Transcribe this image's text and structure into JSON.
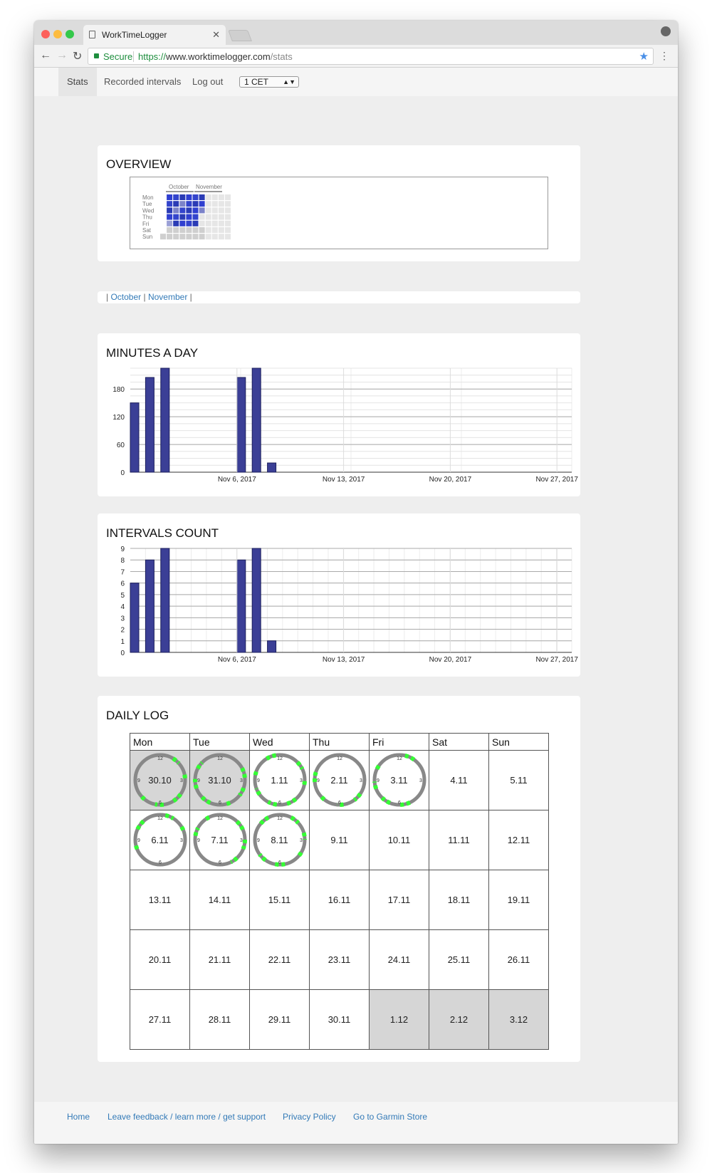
{
  "browser": {
    "tab_title": "WorkTimeLogger",
    "secure_label": "Secure",
    "url_scheme": "https://",
    "url_host": "www.worktimelogger.com",
    "url_path": "/stats"
  },
  "nav": {
    "items": [
      "Stats",
      "Recorded intervals",
      "Log out"
    ],
    "timezone": "1 CET"
  },
  "overview": {
    "title": "OVERVIEW",
    "months": [
      "October",
      "November"
    ],
    "days": [
      "Mon",
      "Tue",
      "Wed",
      "Thu",
      "Fri",
      "Sat",
      "Sun"
    ]
  },
  "month_links": {
    "sep": "|",
    "items": [
      "October",
      "November"
    ]
  },
  "minutes_chart": {
    "title": "MINUTES A DAY",
    "chart_data": {
      "type": "bar",
      "x": [
        "2017-10-30",
        "2017-10-31",
        "2017-11-01",
        "2017-11-02",
        "2017-11-03",
        "2017-11-06",
        "2017-11-07",
        "2017-11-08"
      ],
      "values": [
        150,
        205,
        225,
        0,
        0,
        205,
        225,
        20
      ],
      "ylim": [
        0,
        225
      ],
      "yticks": [
        "180",
        "120",
        "60",
        "0"
      ],
      "xticks": [
        "Nov 6, 2017",
        "Nov 13, 2017",
        "Nov 20, 2017",
        "Nov 27, 2017"
      ],
      "bar_color": "#3b3f96"
    }
  },
  "intervals_chart": {
    "title": "INTERVALS COUNT",
    "chart_data": {
      "type": "bar",
      "x": [
        "2017-10-30",
        "2017-10-31",
        "2017-11-01",
        "2017-11-02",
        "2017-11-03",
        "2017-11-06",
        "2017-11-07",
        "2017-11-08"
      ],
      "values": [
        6,
        8,
        9,
        0,
        0,
        8,
        9,
        1
      ],
      "ylim": [
        0,
        9
      ],
      "yticks": [
        "9",
        "8",
        "7",
        "6",
        "5",
        "4",
        "3",
        "2",
        "1",
        "0"
      ],
      "xticks": [
        "Nov 6, 2017",
        "Nov 13, 2017",
        "Nov 20, 2017",
        "Nov 27, 2017"
      ],
      "bar_color": "#3b3f96"
    }
  },
  "daily_log": {
    "title": "DAILY LOG",
    "weekdays": [
      "Mon",
      "Tue",
      "Wed",
      "Thu",
      "Fri",
      "Sat",
      "Sun"
    ],
    "clock_labels": [
      "12",
      "3",
      "6",
      "9"
    ],
    "weeks": [
      [
        {
          "d": "30.10",
          "c": true,
          "g": true
        },
        {
          "d": "31.10",
          "c": true,
          "g": true
        },
        {
          "d": "1.11",
          "c": true
        },
        {
          "d": "2.11",
          "c": true
        },
        {
          "d": "3.11",
          "c": true
        },
        {
          "d": "4.11"
        },
        {
          "d": "5.11"
        }
      ],
      [
        {
          "d": "6.11",
          "c": true
        },
        {
          "d": "7.11",
          "c": true
        },
        {
          "d": "8.11",
          "c": true
        },
        {
          "d": "9.11"
        },
        {
          "d": "10.11"
        },
        {
          "d": "11.11"
        },
        {
          "d": "12.11"
        }
      ],
      [
        {
          "d": "13.11"
        },
        {
          "d": "14.11"
        },
        {
          "d": "15.11"
        },
        {
          "d": "16.11"
        },
        {
          "d": "17.11"
        },
        {
          "d": "18.11"
        },
        {
          "d": "19.11"
        }
      ],
      [
        {
          "d": "20.11"
        },
        {
          "d": "21.11"
        },
        {
          "d": "22.11"
        },
        {
          "d": "23.11"
        },
        {
          "d": "24.11"
        },
        {
          "d": "25.11"
        },
        {
          "d": "26.11"
        }
      ],
      [
        {
          "d": "27.11"
        },
        {
          "d": "28.11"
        },
        {
          "d": "29.11"
        },
        {
          "d": "30.11"
        },
        {
          "d": "1.12",
          "g": true
        },
        {
          "d": "2.12",
          "g": true
        },
        {
          "d": "3.12",
          "g": true
        }
      ]
    ]
  },
  "footer": {
    "links": [
      "Home",
      "Leave feedback / learn more / get support",
      "Privacy Policy",
      "Go to Garmin Store"
    ]
  },
  "colors": {
    "bar": "#3b3f96",
    "link": "#337ab7",
    "secure": "#1e8e3e",
    "clock_ring": "#888888",
    "clock_segment": "#33ff33"
  }
}
